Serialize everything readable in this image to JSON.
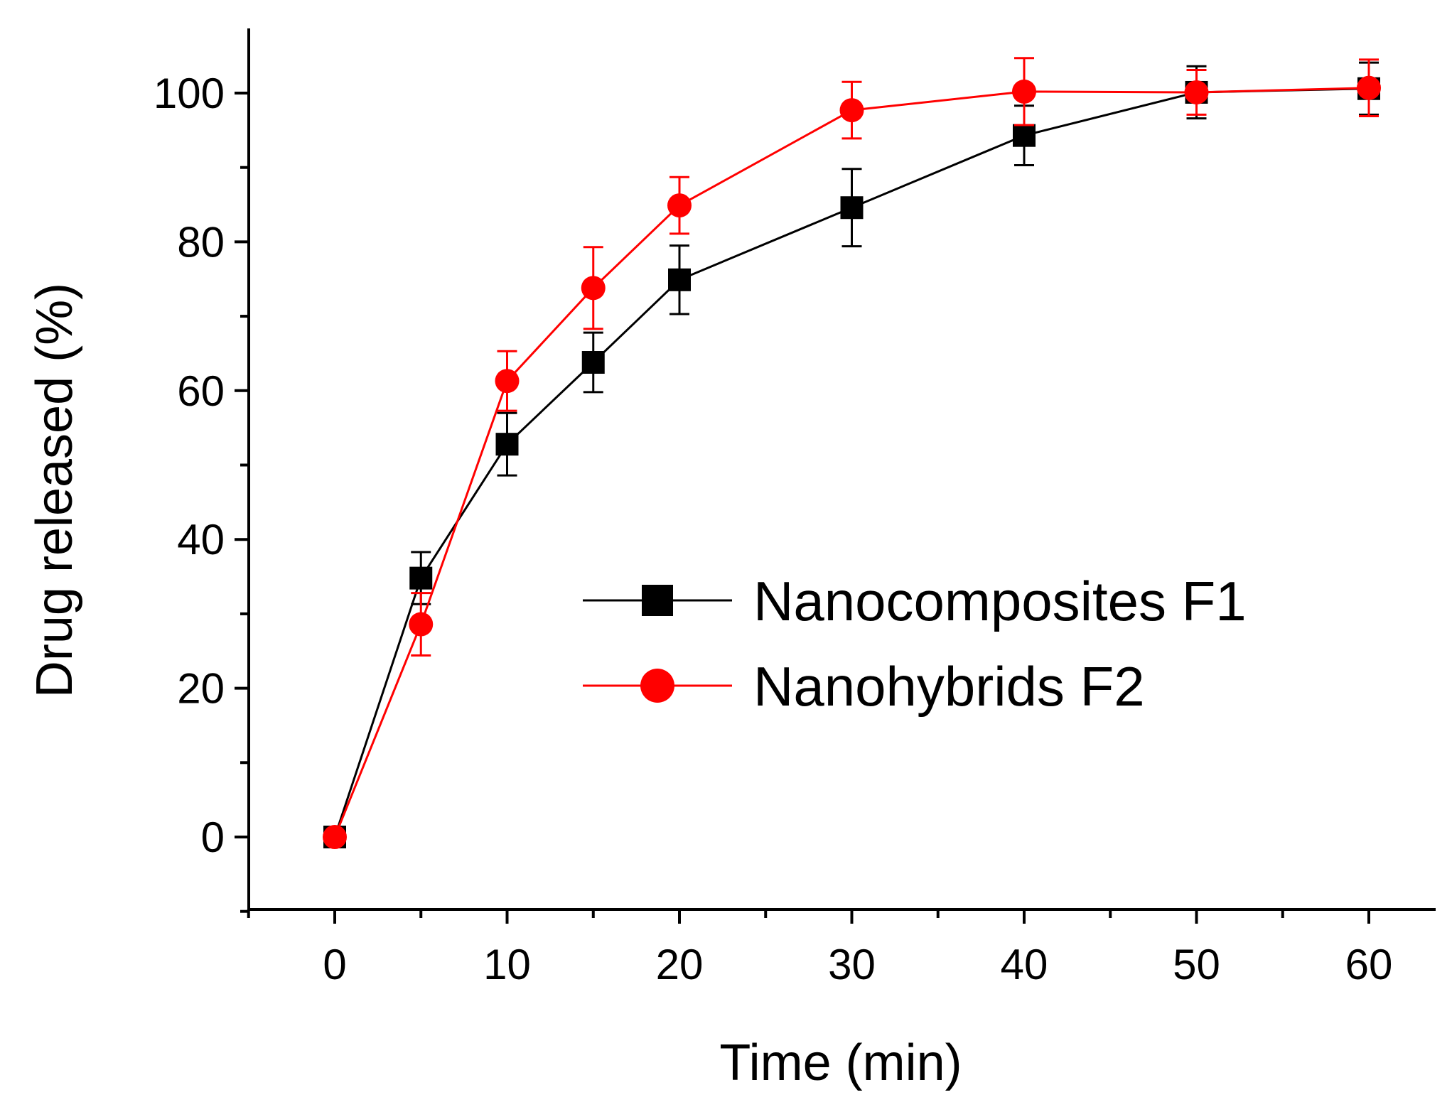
{
  "chart_data": {
    "type": "line",
    "xlabel": "Time (min)",
    "ylabel": "Drug released (%)",
    "xlim": [
      -5,
      64
    ],
    "ylim": [
      -10,
      109
    ],
    "x_ticks": [
      0,
      10,
      20,
      30,
      40,
      50,
      60
    ],
    "x_minor_ticks": [
      -5,
      5,
      15,
      25,
      35,
      45,
      55,
      60
    ],
    "y_ticks": [
      0,
      20,
      40,
      60,
      80,
      100
    ],
    "y_minor_ticks": [
      -10,
      10,
      30,
      50,
      70,
      90
    ],
    "grid": false,
    "legend_position": "center-right",
    "series": [
      {
        "name": "Nanocomposites F1",
        "color": "#000000",
        "marker": "square",
        "x": [
          0,
          5,
          10,
          15,
          20,
          30,
          40,
          50,
          60
        ],
        "y": [
          0,
          34.8,
          52.8,
          63.8,
          74.9,
          84.6,
          94.3,
          100.1,
          100.6
        ],
        "error": [
          0,
          3.5,
          4.2,
          4.0,
          4.6,
          5.2,
          4.0,
          3.5,
          3.5
        ]
      },
      {
        "name": "Nanohybrids F2",
        "color": "#ff0000",
        "marker": "circle",
        "x": [
          0,
          5,
          10,
          15,
          20,
          30,
          40,
          50,
          60
        ],
        "y": [
          0,
          28.6,
          61.3,
          73.8,
          84.9,
          97.7,
          100.2,
          100.1,
          100.7
        ],
        "error": [
          0,
          4.2,
          4.0,
          5.5,
          3.8,
          3.8,
          4.5,
          3.0,
          3.8
        ]
      }
    ]
  }
}
